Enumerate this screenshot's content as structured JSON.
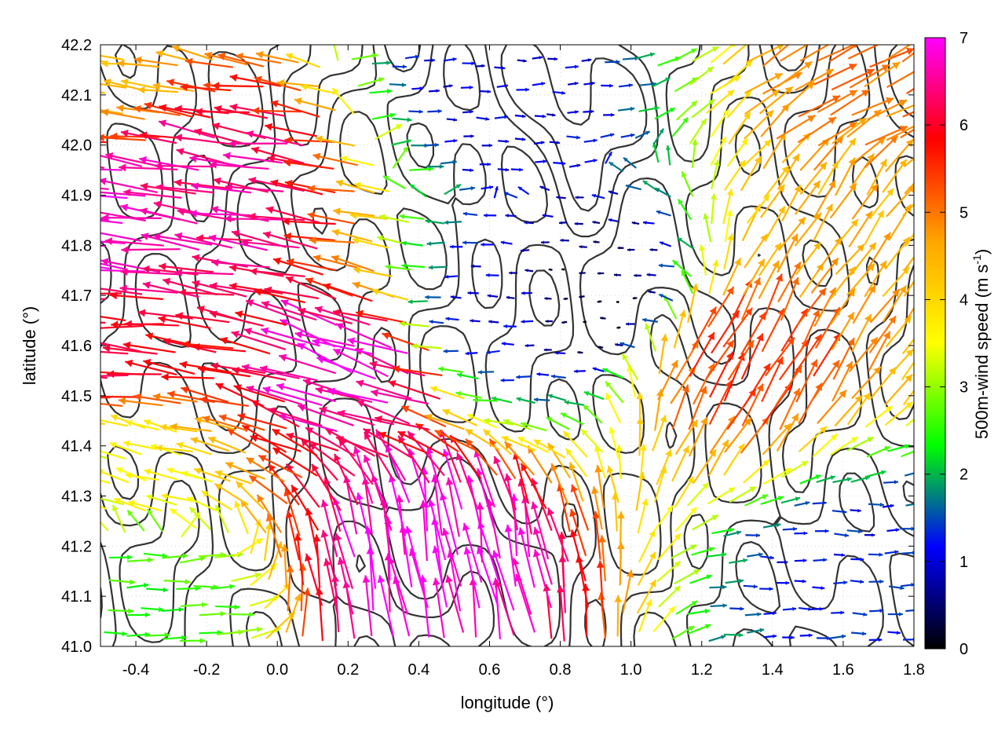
{
  "chart_data": {
    "type": "quiver",
    "xlabel": "longitude (°)",
    "ylabel": "latitude (°)",
    "xlim": [
      -0.5,
      1.8
    ],
    "ylim": [
      41.0,
      42.2
    ],
    "xticks": [
      "-0.4",
      "-0.2",
      "0.0",
      "0.2",
      "0.4",
      "0.6",
      "0.8",
      "1.0",
      "1.2",
      "1.4",
      "1.6",
      "1.8"
    ],
    "yticks": [
      "41.0",
      "41.1",
      "41.2",
      "41.3",
      "41.4",
      "41.5",
      "41.6",
      "41.7",
      "41.8",
      "41.9",
      "42.0",
      "42.1",
      "42.2"
    ],
    "grid": true,
    "colorbar": {
      "label_main": "500m-wind speed (m s",
      "label_sup": "-1",
      "label_end": ")",
      "range": [
        0,
        7
      ],
      "ticks": [
        "0",
        "1",
        "2",
        "3",
        "4",
        "5",
        "6",
        "7"
      ],
      "colors": [
        "#000000",
        "#0000ff",
        "#00ff00",
        "#ffff00",
        "#ffa500",
        "#ff0000",
        "#ff00ff"
      ]
    },
    "contour_color": "#333333",
    "wind_samples": [
      {
        "lon": -0.45,
        "lat": 42.15,
        "speed": 4.5,
        "dir": 170
      },
      {
        "lon": -0.45,
        "lat": 41.85,
        "speed": 6.9,
        "dir": 175
      },
      {
        "lon": -0.45,
        "lat": 41.6,
        "speed": 6.0,
        "dir": 175
      },
      {
        "lon": -0.45,
        "lat": 41.35,
        "speed": 3.5,
        "dir": 165
      },
      {
        "lon": -0.45,
        "lat": 41.1,
        "speed": 2.5,
        "dir": 0
      },
      {
        "lon": -0.1,
        "lat": 41.9,
        "speed": 6.5,
        "dir": 172
      },
      {
        "lon": 0.3,
        "lat": 41.55,
        "speed": 6.8,
        "dir": 160
      },
      {
        "lon": 0.45,
        "lat": 41.15,
        "speed": 6.9,
        "dir": 100
      },
      {
        "lon": 0.6,
        "lat": 41.65,
        "speed": 1.0,
        "dir": 180
      },
      {
        "lon": 0.6,
        "lat": 42.1,
        "speed": 1.0,
        "dir": 0
      },
      {
        "lon": 0.9,
        "lat": 41.7,
        "speed": 0.3,
        "dir": 180
      },
      {
        "lon": 1.3,
        "lat": 41.55,
        "speed": 5.5,
        "dir": 60
      },
      {
        "lon": 1.6,
        "lat": 41.8,
        "speed": 4.5,
        "dir": 55
      },
      {
        "lon": 1.6,
        "lat": 41.15,
        "speed": 1.2,
        "dir": 0
      },
      {
        "lon": 1.7,
        "lat": 42.1,
        "speed": 5.0,
        "dir": 30
      }
    ]
  }
}
